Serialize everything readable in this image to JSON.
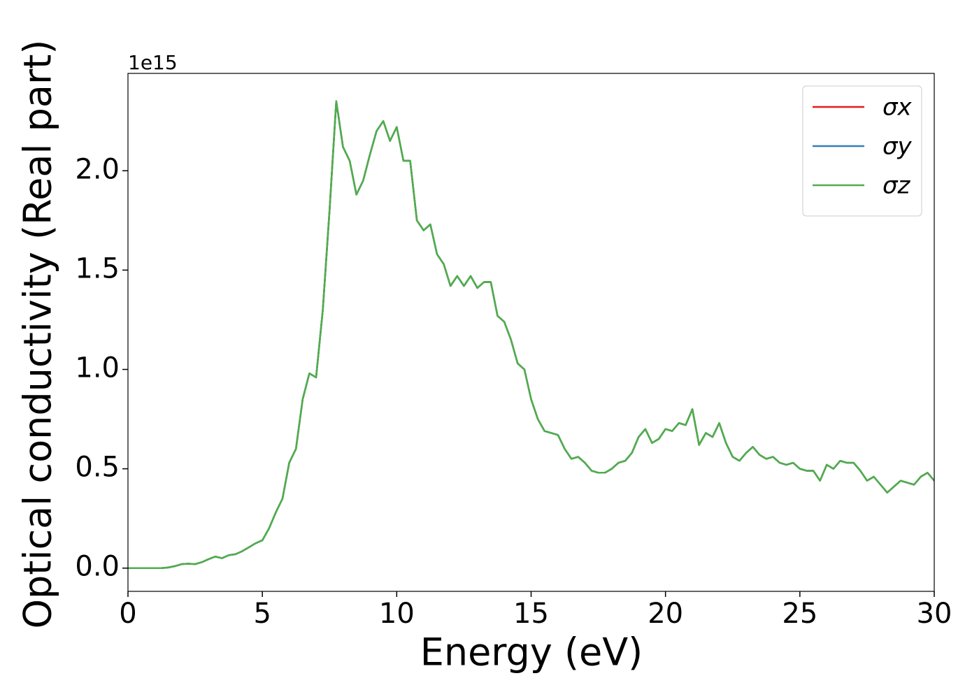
{
  "chart_data": {
    "type": "line",
    "ylabel": "Optical conductivity (Real part)",
    "xlabel": "Energy (eV)",
    "y_offset_text": "1e15",
    "x": [
      0,
      0.25,
      0.5,
      0.75,
      1,
      1.25,
      1.5,
      1.75,
      2,
      2.25,
      2.5,
      2.75,
      3,
      3.25,
      3.5,
      3.75,
      4,
      4.25,
      4.5,
      4.75,
      5,
      5.25,
      5.5,
      5.75,
      6,
      6.25,
      6.5,
      6.75,
      7,
      7.25,
      7.5,
      7.75,
      8,
      8.25,
      8.5,
      8.75,
      9,
      9.25,
      9.5,
      9.75,
      10,
      10.25,
      10.5,
      10.75,
      11,
      11.25,
      11.5,
      11.75,
      12,
      12.25,
      12.5,
      12.75,
      13,
      13.25,
      13.5,
      13.75,
      14,
      14.25,
      14.5,
      14.75,
      15,
      15.25,
      15.5,
      15.75,
      16,
      16.25,
      16.5,
      16.75,
      17,
      17.25,
      17.5,
      17.75,
      18,
      18.25,
      18.5,
      18.75,
      19,
      19.25,
      19.5,
      19.75,
      20,
      20.25,
      20.5,
      20.75,
      21,
      21.25,
      21.5,
      21.75,
      22,
      22.25,
      22.5,
      22.75,
      23,
      23.25,
      23.5,
      23.75,
      24,
      24.25,
      24.5,
      24.75,
      25,
      25.25,
      25.5,
      25.75,
      26,
      26.25,
      26.5,
      26.75,
      27,
      27.25,
      27.5,
      27.75,
      28,
      28.25,
      28.5,
      28.75,
      29,
      29.25,
      29.5,
      29.75,
      30
    ],
    "series": [
      {
        "name": "σx",
        "color": "#e41a1c",
        "values": [
          0,
          0,
          0,
          0,
          0,
          0,
          0.003,
          0.01,
          0.02,
          0.022,
          0.02,
          0.03,
          0.045,
          0.058,
          0.05,
          0.065,
          0.07,
          0.085,
          0.105,
          0.125,
          0.14,
          0.2,
          0.28,
          0.35,
          0.53,
          0.6,
          0.85,
          0.98,
          0.96,
          1.3,
          1.8,
          2.35,
          2.12,
          2.05,
          1.88,
          1.95,
          2.08,
          2.2,
          2.25,
          2.15,
          2.22,
          2.05,
          2.05,
          1.75,
          1.7,
          1.73,
          1.58,
          1.53,
          1.42,
          1.47,
          1.42,
          1.47,
          1.41,
          1.44,
          1.44,
          1.27,
          1.24,
          1.15,
          1.03,
          1.0,
          0.85,
          0.75,
          0.69,
          0.68,
          0.67,
          0.6,
          0.55,
          0.56,
          0.53,
          0.49,
          0.48,
          0.48,
          0.5,
          0.53,
          0.54,
          0.58,
          0.66,
          0.7,
          0.63,
          0.65,
          0.7,
          0.69,
          0.73,
          0.72,
          0.8,
          0.62,
          0.68,
          0.66,
          0.73,
          0.63,
          0.56,
          0.54,
          0.58,
          0.61,
          0.57,
          0.55,
          0.56,
          0.53,
          0.52,
          0.53,
          0.5,
          0.49,
          0.49,
          0.44,
          0.52,
          0.5,
          0.54,
          0.53,
          0.53,
          0.49,
          0.44,
          0.46,
          0.42,
          0.38,
          0.41,
          0.44,
          0.43,
          0.42,
          0.46,
          0.48,
          0.44
        ]
      },
      {
        "name": "σy",
        "color": "#377eb8",
        "values": [
          0,
          0,
          0,
          0,
          0,
          0,
          0.003,
          0.01,
          0.02,
          0.022,
          0.02,
          0.03,
          0.045,
          0.058,
          0.05,
          0.065,
          0.07,
          0.085,
          0.105,
          0.125,
          0.14,
          0.2,
          0.28,
          0.35,
          0.53,
          0.6,
          0.85,
          0.98,
          0.96,
          1.3,
          1.8,
          2.35,
          2.12,
          2.05,
          1.88,
          1.95,
          2.08,
          2.2,
          2.25,
          2.15,
          2.22,
          2.05,
          2.05,
          1.75,
          1.7,
          1.73,
          1.58,
          1.53,
          1.42,
          1.47,
          1.42,
          1.47,
          1.41,
          1.44,
          1.44,
          1.27,
          1.24,
          1.15,
          1.03,
          1.0,
          0.85,
          0.75,
          0.69,
          0.68,
          0.67,
          0.6,
          0.55,
          0.56,
          0.53,
          0.49,
          0.48,
          0.48,
          0.5,
          0.53,
          0.54,
          0.58,
          0.66,
          0.7,
          0.63,
          0.65,
          0.7,
          0.69,
          0.73,
          0.72,
          0.8,
          0.62,
          0.68,
          0.66,
          0.73,
          0.63,
          0.56,
          0.54,
          0.58,
          0.61,
          0.57,
          0.55,
          0.56,
          0.53,
          0.52,
          0.53,
          0.5,
          0.49,
          0.49,
          0.44,
          0.52,
          0.5,
          0.54,
          0.53,
          0.53,
          0.49,
          0.44,
          0.46,
          0.42,
          0.38,
          0.41,
          0.44,
          0.43,
          0.42,
          0.46,
          0.48,
          0.44
        ]
      },
      {
        "name": "σz",
        "color": "#4daf4a",
        "values": [
          0,
          0,
          0,
          0,
          0,
          0,
          0.003,
          0.01,
          0.02,
          0.022,
          0.02,
          0.03,
          0.045,
          0.058,
          0.05,
          0.065,
          0.07,
          0.085,
          0.105,
          0.125,
          0.14,
          0.2,
          0.28,
          0.35,
          0.53,
          0.6,
          0.85,
          0.98,
          0.96,
          1.3,
          1.8,
          2.35,
          2.12,
          2.05,
          1.88,
          1.95,
          2.08,
          2.2,
          2.25,
          2.15,
          2.22,
          2.05,
          2.05,
          1.75,
          1.7,
          1.73,
          1.58,
          1.53,
          1.42,
          1.47,
          1.42,
          1.47,
          1.41,
          1.44,
          1.44,
          1.27,
          1.24,
          1.15,
          1.03,
          1.0,
          0.85,
          0.75,
          0.69,
          0.68,
          0.67,
          0.6,
          0.55,
          0.56,
          0.53,
          0.49,
          0.48,
          0.48,
          0.5,
          0.53,
          0.54,
          0.58,
          0.66,
          0.7,
          0.63,
          0.65,
          0.7,
          0.69,
          0.73,
          0.72,
          0.8,
          0.62,
          0.68,
          0.66,
          0.73,
          0.63,
          0.56,
          0.54,
          0.58,
          0.61,
          0.57,
          0.55,
          0.56,
          0.53,
          0.52,
          0.53,
          0.5,
          0.49,
          0.49,
          0.44,
          0.52,
          0.5,
          0.54,
          0.53,
          0.53,
          0.49,
          0.44,
          0.46,
          0.42,
          0.38,
          0.41,
          0.44,
          0.43,
          0.42,
          0.46,
          0.48,
          0.44
        ]
      }
    ],
    "xlim": [
      0,
      30
    ],
    "xticks": [
      0,
      5,
      10,
      15,
      20,
      25,
      30
    ],
    "ylim": [
      -0.117,
      2.49
    ],
    "yticks": [
      {
        "value": 0,
        "label": "0.0"
      },
      0.5,
      {
        "value": 1,
        "label": "1.0"
      },
      1.5,
      {
        "value": 2,
        "label": "2.0"
      }
    ],
    "legend": "upper right",
    "grid": false
  }
}
